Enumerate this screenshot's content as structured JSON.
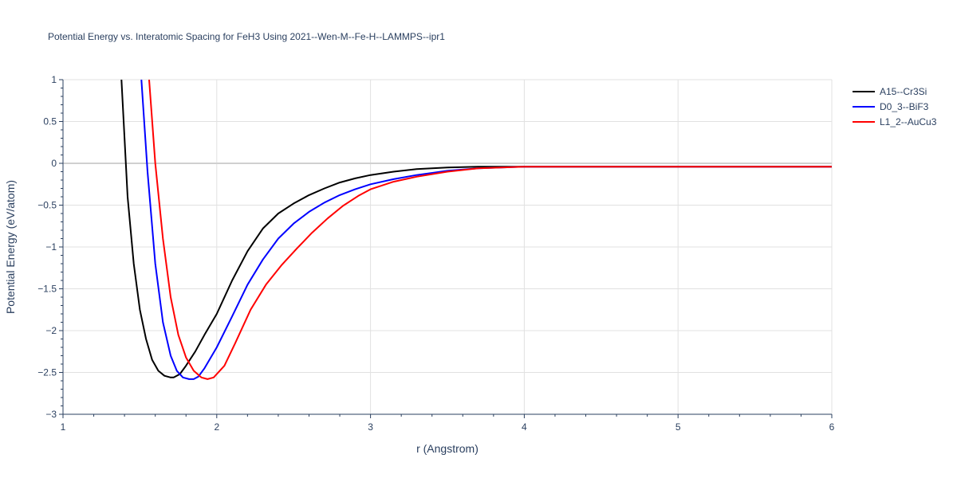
{
  "chart_data": {
    "type": "line",
    "title": "Potential Energy vs. Interatomic Spacing for FeH3 Using 2021--Wen-M--Fe-H--LAMMPS--ipr1",
    "xlabel": "r (Angstrom)",
    "ylabel": "Potential Energy (eV/atom)",
    "xlim": [
      1,
      6
    ],
    "ylim": [
      -3,
      1
    ],
    "xticks": [
      1,
      2,
      3,
      4,
      5,
      6
    ],
    "xtick_labels": [
      "1",
      "2",
      "3",
      "4",
      "5",
      "6"
    ],
    "yticks": [
      1,
      0.5,
      0,
      -0.5,
      -1,
      -1.5,
      -2,
      -2.5,
      -3
    ],
    "ytick_labels": [
      "1",
      "0.5",
      "0",
      "−0.5",
      "−1",
      "−1.5",
      "−2",
      "−2.5",
      "−3"
    ],
    "grid": true,
    "legend_position": "top-right",
    "series": [
      {
        "name": "A15--Cr3Si",
        "color": "#000000",
        "x": [
          1.38,
          1.42,
          1.46,
          1.5,
          1.54,
          1.58,
          1.62,
          1.66,
          1.7,
          1.72,
          1.76,
          1.8,
          1.86,
          1.92,
          2.0,
          2.1,
          2.2,
          2.3,
          2.4,
          2.5,
          2.6,
          2.7,
          2.8,
          2.9,
          3.0,
          3.15,
          3.3,
          3.5,
          3.7,
          4.0,
          4.5,
          5.0,
          5.5,
          6.0
        ],
        "y": [
          1.0,
          -0.4,
          -1.2,
          -1.75,
          -2.1,
          -2.35,
          -2.48,
          -2.54,
          -2.56,
          -2.56,
          -2.52,
          -2.42,
          -2.25,
          -2.05,
          -1.8,
          -1.4,
          -1.05,
          -0.78,
          -0.6,
          -0.48,
          -0.38,
          -0.3,
          -0.23,
          -0.18,
          -0.14,
          -0.1,
          -0.07,
          -0.05,
          -0.04,
          -0.04,
          -0.04,
          -0.04,
          -0.04,
          -0.04
        ]
      },
      {
        "name": "D0_3--BiF3",
        "color": "#0000ff",
        "x": [
          1.51,
          1.55,
          1.6,
          1.65,
          1.7,
          1.74,
          1.78,
          1.82,
          1.85,
          1.88,
          1.92,
          2.0,
          2.1,
          2.2,
          2.3,
          2.4,
          2.5,
          2.6,
          2.7,
          2.8,
          2.9,
          3.0,
          3.15,
          3.3,
          3.5,
          3.7,
          4.0,
          4.5,
          5.0,
          5.5,
          6.0
        ],
        "y": [
          1.0,
          -0.1,
          -1.2,
          -1.9,
          -2.3,
          -2.48,
          -2.56,
          -2.58,
          -2.58,
          -2.55,
          -2.45,
          -2.2,
          -1.83,
          -1.45,
          -1.15,
          -0.9,
          -0.72,
          -0.58,
          -0.47,
          -0.38,
          -0.31,
          -0.25,
          -0.19,
          -0.14,
          -0.09,
          -0.06,
          -0.04,
          -0.04,
          -0.04,
          -0.04,
          -0.04
        ]
      },
      {
        "name": "L1_2--AuCu3",
        "color": "#ff0000",
        "x": [
          1.56,
          1.6,
          1.65,
          1.7,
          1.75,
          1.8,
          1.85,
          1.9,
          1.94,
          1.98,
          2.05,
          2.12,
          2.22,
          2.32,
          2.42,
          2.52,
          2.62,
          2.72,
          2.82,
          2.92,
          3.0,
          3.15,
          3.3,
          3.5,
          3.7,
          4.0,
          4.5,
          5.0,
          5.5,
          6.0
        ],
        "y": [
          1.0,
          0.0,
          -0.9,
          -1.6,
          -2.05,
          -2.32,
          -2.48,
          -2.56,
          -2.58,
          -2.56,
          -2.42,
          -2.15,
          -1.75,
          -1.45,
          -1.22,
          -1.02,
          -0.83,
          -0.66,
          -0.51,
          -0.39,
          -0.31,
          -0.22,
          -0.16,
          -0.1,
          -0.06,
          -0.04,
          -0.04,
          -0.04,
          -0.04,
          -0.04
        ]
      }
    ]
  }
}
